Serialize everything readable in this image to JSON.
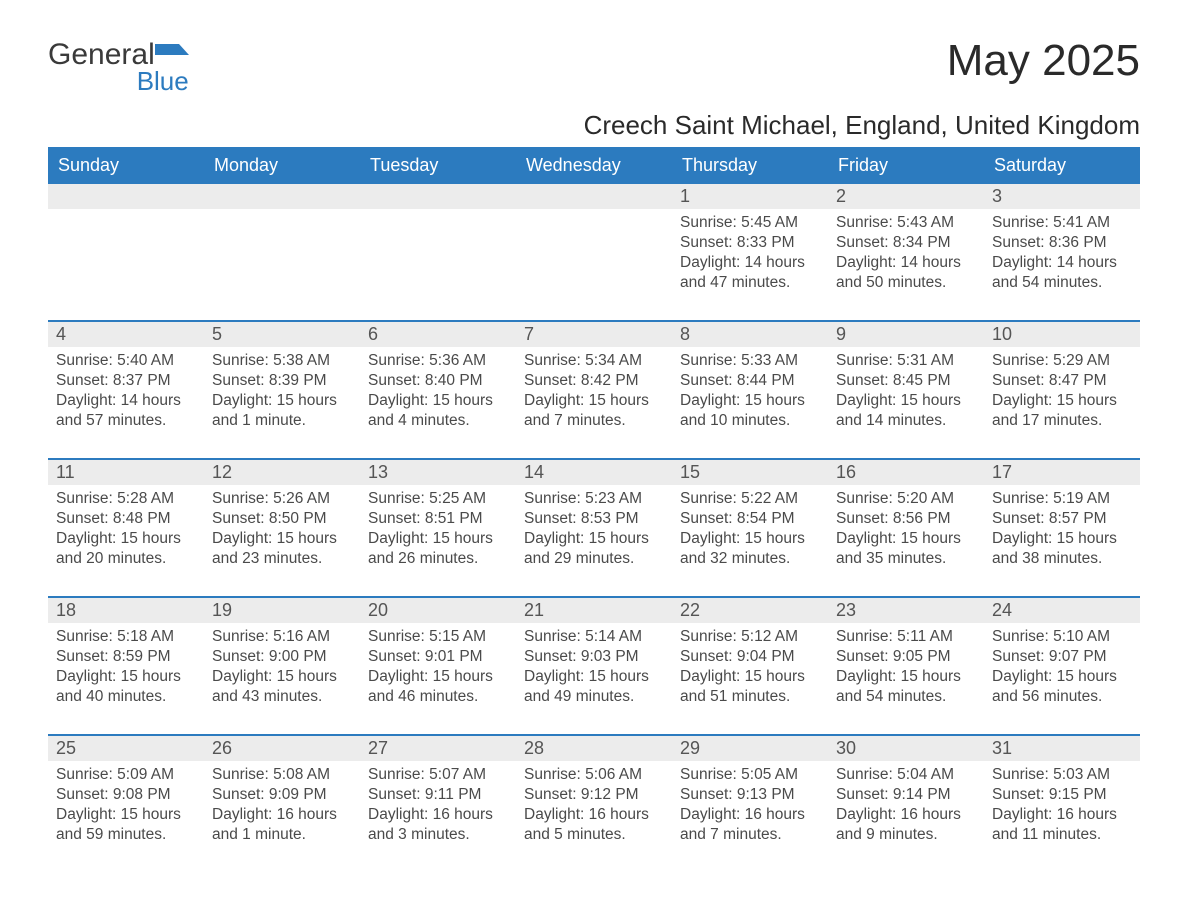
{
  "brand": {
    "word1": "General",
    "word2": "Blue"
  },
  "title": "May 2025",
  "location": "Creech Saint Michael, England, United Kingdom",
  "colors": {
    "header_blue": "#2c7bbf",
    "row_grey": "#ececec",
    "text": "#3a3a3a",
    "background": "#ffffff"
  },
  "typography": {
    "title_fontsize": 44,
    "location_fontsize": 26,
    "dow_fontsize": 18,
    "body_fontsize": 15.5
  },
  "daysOfWeek": [
    "Sunday",
    "Monday",
    "Tuesday",
    "Wednesday",
    "Thursday",
    "Friday",
    "Saturday"
  ],
  "labels": {
    "sunrise": "Sunrise: ",
    "sunset": "Sunset: ",
    "daylight": "Daylight: "
  },
  "weeks": [
    [
      null,
      null,
      null,
      null,
      {
        "n": "1",
        "sr": "5:45 AM",
        "ss": "8:33 PM",
        "dl": "14 hours and 47 minutes."
      },
      {
        "n": "2",
        "sr": "5:43 AM",
        "ss": "8:34 PM",
        "dl": "14 hours and 50 minutes."
      },
      {
        "n": "3",
        "sr": "5:41 AM",
        "ss": "8:36 PM",
        "dl": "14 hours and 54 minutes."
      }
    ],
    [
      {
        "n": "4",
        "sr": "5:40 AM",
        "ss": "8:37 PM",
        "dl": "14 hours and 57 minutes."
      },
      {
        "n": "5",
        "sr": "5:38 AM",
        "ss": "8:39 PM",
        "dl": "15 hours and 1 minute."
      },
      {
        "n": "6",
        "sr": "5:36 AM",
        "ss": "8:40 PM",
        "dl": "15 hours and 4 minutes."
      },
      {
        "n": "7",
        "sr": "5:34 AM",
        "ss": "8:42 PM",
        "dl": "15 hours and 7 minutes."
      },
      {
        "n": "8",
        "sr": "5:33 AM",
        "ss": "8:44 PM",
        "dl": "15 hours and 10 minutes."
      },
      {
        "n": "9",
        "sr": "5:31 AM",
        "ss": "8:45 PM",
        "dl": "15 hours and 14 minutes."
      },
      {
        "n": "10",
        "sr": "5:29 AM",
        "ss": "8:47 PM",
        "dl": "15 hours and 17 minutes."
      }
    ],
    [
      {
        "n": "11",
        "sr": "5:28 AM",
        "ss": "8:48 PM",
        "dl": "15 hours and 20 minutes."
      },
      {
        "n": "12",
        "sr": "5:26 AM",
        "ss": "8:50 PM",
        "dl": "15 hours and 23 minutes."
      },
      {
        "n": "13",
        "sr": "5:25 AM",
        "ss": "8:51 PM",
        "dl": "15 hours and 26 minutes."
      },
      {
        "n": "14",
        "sr": "5:23 AM",
        "ss": "8:53 PM",
        "dl": "15 hours and 29 minutes."
      },
      {
        "n": "15",
        "sr": "5:22 AM",
        "ss": "8:54 PM",
        "dl": "15 hours and 32 minutes."
      },
      {
        "n": "16",
        "sr": "5:20 AM",
        "ss": "8:56 PM",
        "dl": "15 hours and 35 minutes."
      },
      {
        "n": "17",
        "sr": "5:19 AM",
        "ss": "8:57 PM",
        "dl": "15 hours and 38 minutes."
      }
    ],
    [
      {
        "n": "18",
        "sr": "5:18 AM",
        "ss": "8:59 PM",
        "dl": "15 hours and 40 minutes."
      },
      {
        "n": "19",
        "sr": "5:16 AM",
        "ss": "9:00 PM",
        "dl": "15 hours and 43 minutes."
      },
      {
        "n": "20",
        "sr": "5:15 AM",
        "ss": "9:01 PM",
        "dl": "15 hours and 46 minutes."
      },
      {
        "n": "21",
        "sr": "5:14 AM",
        "ss": "9:03 PM",
        "dl": "15 hours and 49 minutes."
      },
      {
        "n": "22",
        "sr": "5:12 AM",
        "ss": "9:04 PM",
        "dl": "15 hours and 51 minutes."
      },
      {
        "n": "23",
        "sr": "5:11 AM",
        "ss": "9:05 PM",
        "dl": "15 hours and 54 minutes."
      },
      {
        "n": "24",
        "sr": "5:10 AM",
        "ss": "9:07 PM",
        "dl": "15 hours and 56 minutes."
      }
    ],
    [
      {
        "n": "25",
        "sr": "5:09 AM",
        "ss": "9:08 PM",
        "dl": "15 hours and 59 minutes."
      },
      {
        "n": "26",
        "sr": "5:08 AM",
        "ss": "9:09 PM",
        "dl": "16 hours and 1 minute."
      },
      {
        "n": "27",
        "sr": "5:07 AM",
        "ss": "9:11 PM",
        "dl": "16 hours and 3 minutes."
      },
      {
        "n": "28",
        "sr": "5:06 AM",
        "ss": "9:12 PM",
        "dl": "16 hours and 5 minutes."
      },
      {
        "n": "29",
        "sr": "5:05 AM",
        "ss": "9:13 PM",
        "dl": "16 hours and 7 minutes."
      },
      {
        "n": "30",
        "sr": "5:04 AM",
        "ss": "9:14 PM",
        "dl": "16 hours and 9 minutes."
      },
      {
        "n": "31",
        "sr": "5:03 AM",
        "ss": "9:15 PM",
        "dl": "16 hours and 11 minutes."
      }
    ]
  ]
}
